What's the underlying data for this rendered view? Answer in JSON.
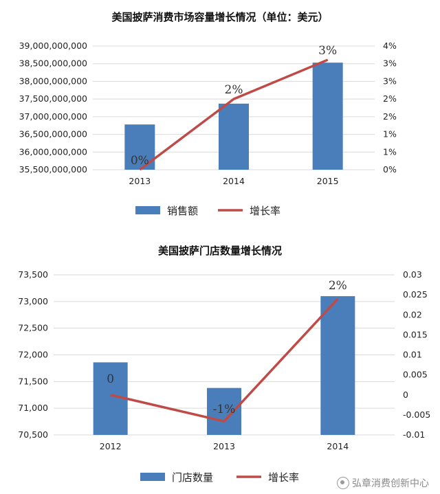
{
  "watermark": "弘章消费创新中心",
  "colors": {
    "bar": "#4a7ebb",
    "line": "#be4b48",
    "grid": "#d9d9d9",
    "axis_text": "#222222"
  },
  "chart_data": [
    {
      "type": "bar",
      "title": "美国披萨消费市场容量增长情况（单位：美元）",
      "categories": [
        "2013",
        "2014",
        "2015"
      ],
      "series": [
        {
          "name": "销售额",
          "kind": "bar",
          "axis": "left",
          "values": [
            36780000000,
            37370000000,
            38530000000
          ]
        },
        {
          "name": "增长率",
          "kind": "line",
          "axis": "right",
          "values": [
            0,
            0.02,
            0.0311
          ],
          "data_labels": [
            "0%",
            "2%",
            "3%"
          ]
        }
      ],
      "y_left": {
        "min": 35500000000,
        "max": 39000000000,
        "step": 500000000,
        "ticks": [
          "35,500,000,000",
          "36,000,000,000",
          "36,500,000,000",
          "37,000,000,000",
          "37,500,000,000",
          "38,000,000,000",
          "38,500,000,000",
          "39,000,000,000"
        ]
      },
      "y_right": {
        "min": 0,
        "max": 0.035,
        "step": 0.005,
        "ticks": [
          "0%",
          "1%",
          "1%",
          "2%",
          "2%",
          "3%",
          "3%",
          "4%"
        ]
      },
      "legend": {
        "position": "bottom",
        "items": [
          "销售额",
          "增长率"
        ]
      },
      "grid": true
    },
    {
      "type": "bar",
      "title": "美国披萨门店数量增长情况",
      "categories": [
        "2012",
        "2013",
        "2014"
      ],
      "series": [
        {
          "name": "门店数量",
          "kind": "bar",
          "axis": "left",
          "values": [
            71860,
            71380,
            73100
          ]
        },
        {
          "name": "增长率",
          "kind": "line",
          "axis": "right",
          "values": [
            0,
            -0.0066,
            0.024
          ],
          "data_labels": [
            "0",
            "-1%",
            "2%"
          ]
        }
      ],
      "y_left": {
        "min": 70500,
        "max": 73500,
        "step": 500,
        "ticks": [
          "70,500",
          "71,000",
          "71,500",
          "72,000",
          "72,500",
          "73,000",
          "73,500"
        ]
      },
      "y_right": {
        "min": -0.01,
        "max": 0.03,
        "step": 0.005,
        "ticks": [
          "-0.01",
          "-0.005",
          "0",
          "0.005",
          "0.01",
          "0.015",
          "0.02",
          "0.025",
          "0.03"
        ]
      },
      "legend": {
        "position": "bottom",
        "items": [
          "门店数量",
          "增长率"
        ]
      },
      "grid": true
    }
  ]
}
